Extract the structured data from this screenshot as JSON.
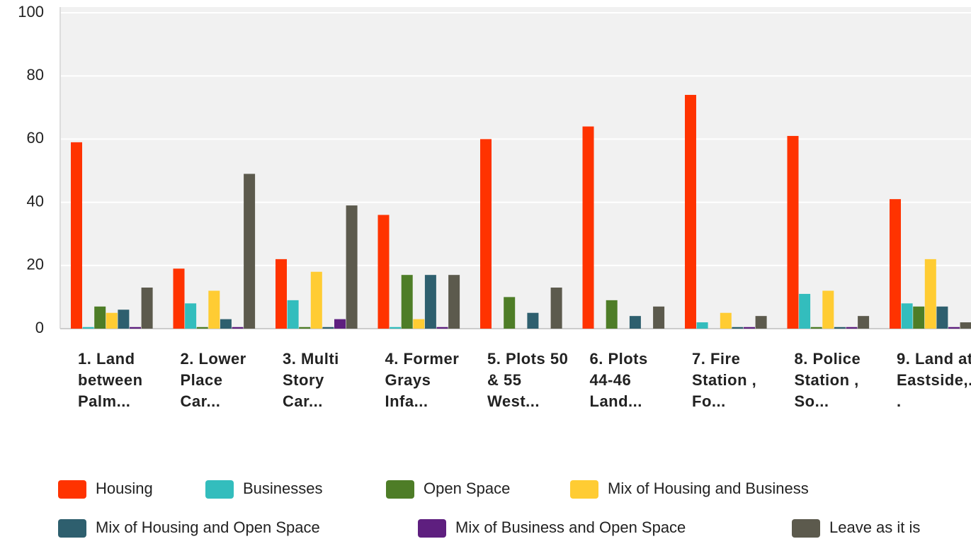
{
  "chart_data": {
    "type": "bar",
    "categories": [
      "1. Land between Palm...",
      "2. Lower Place Car...",
      "3. Multi Story Car...",
      "4. Former Grays Infa...",
      "5. Plots 50 & 55 West...",
      "6. Plots 44-46 Land...",
      "7. Fire Station , Fo...",
      "8. Police Station , So...",
      "9. Land at Eastside,..."
    ],
    "series": [
      {
        "name": "Housing",
        "color": "#ff3300",
        "values": [
          59,
          19,
          22,
          36,
          60,
          64,
          74,
          61,
          41
        ]
      },
      {
        "name": "Businesses",
        "color": "#33bdbd",
        "values": [
          0.5,
          8,
          9,
          0.5,
          0,
          0,
          2,
          11,
          8
        ]
      },
      {
        "name": "Open Space",
        "color": "#4e7d27",
        "values": [
          7,
          0.5,
          0.5,
          17,
          10,
          9,
          0,
          0.5,
          7
        ]
      },
      {
        "name": "Mix of Housing and Business",
        "color": "#ffcc33",
        "values": [
          5,
          12,
          18,
          3,
          0,
          0,
          5,
          12,
          22
        ]
      },
      {
        "name": "Mix of Housing and Open Space",
        "color": "#2e5f6e",
        "values": [
          6,
          3,
          0.5,
          17,
          5,
          4,
          0.5,
          0.5,
          7
        ]
      },
      {
        "name": "Mix of Business and Open Space",
        "color": "#5e1f7f",
        "values": [
          0.5,
          0.5,
          3,
          0.5,
          0,
          0,
          0.5,
          0.5,
          0.5
        ]
      },
      {
        "name": "Leave as it is",
        "color": "#5c5a4d",
        "values": [
          13,
          49,
          39,
          17,
          13,
          7,
          4,
          4,
          2
        ]
      }
    ],
    "ylim": [
      0,
      100
    ],
    "yticks": [
      0,
      20,
      40,
      60,
      80,
      100
    ],
    "grid": true
  }
}
